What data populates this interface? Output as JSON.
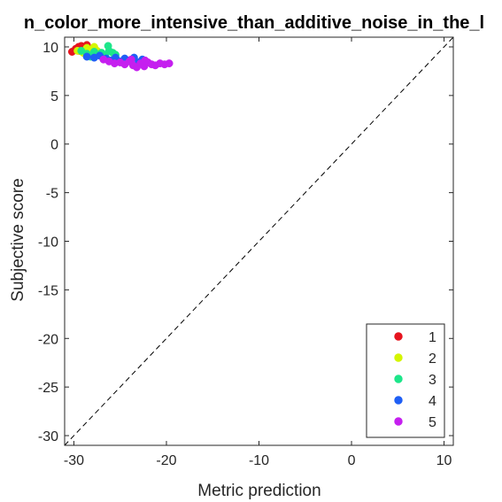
{
  "chart_data": {
    "type": "scatter",
    "title": "n_color_more_intensive_than_additive_noise_in_the_l",
    "xlabel": "Metric prediction",
    "ylabel": "Subjective score",
    "xlim": [
      -31,
      11
    ],
    "ylim": [
      -31,
      11
    ],
    "xticks": [
      -30,
      -20,
      -10,
      0,
      10
    ],
    "yticks": [
      10,
      5,
      0,
      -5,
      -10,
      -15,
      -20,
      -25,
      -30
    ],
    "reference_line": "y = x (dashed)",
    "legend_position": "bottom-right",
    "grid": false,
    "series": [
      {
        "name": "1",
        "color": "#e6141e",
        "points": [
          [
            -30.2,
            9.5
          ],
          [
            -29.8,
            9.8
          ],
          [
            -29.5,
            10.0
          ],
          [
            -29.2,
            10.1
          ],
          [
            -29.0,
            9.7
          ],
          [
            -28.8,
            9.9
          ],
          [
            -28.6,
            10.2
          ],
          [
            -29.4,
            9.6
          ]
        ]
      },
      {
        "name": "2",
        "color": "#d4f500",
        "points": [
          [
            -29.6,
            9.6
          ],
          [
            -29.0,
            9.4
          ],
          [
            -28.6,
            9.9
          ],
          [
            -28.3,
            9.3
          ],
          [
            -28.0,
            9.8
          ],
          [
            -27.8,
            10.0
          ],
          [
            -27.5,
            9.6
          ],
          [
            -27.2,
            9.4
          ]
        ]
      },
      {
        "name": "3",
        "color": "#1de68a",
        "points": [
          [
            -29.2,
            9.6
          ],
          [
            -28.6,
            9.3
          ],
          [
            -28.2,
            9.0
          ],
          [
            -27.8,
            9.5
          ],
          [
            -27.4,
            9.2
          ],
          [
            -27.0,
            9.4
          ],
          [
            -26.6,
            9.1
          ],
          [
            -26.2,
            9.6
          ],
          [
            -25.8,
            9.4
          ],
          [
            -25.5,
            9.2
          ],
          [
            -26.3,
            10.1
          ]
        ]
      },
      {
        "name": "4",
        "color": "#1f5ff5",
        "points": [
          [
            -28.6,
            9.0
          ],
          [
            -27.8,
            8.9
          ],
          [
            -27.2,
            9.1
          ],
          [
            -26.5,
            8.8
          ],
          [
            -26.0,
            8.6
          ],
          [
            -25.5,
            8.9
          ],
          [
            -25.0,
            8.5
          ],
          [
            -24.5,
            8.8
          ],
          [
            -24.0,
            8.6
          ],
          [
            -23.5,
            8.9
          ],
          [
            -23.0,
            8.4
          ],
          [
            -22.6,
            8.7
          ]
        ]
      },
      {
        "name": "5",
        "color": "#c51fef",
        "points": [
          [
            -26.8,
            8.7
          ],
          [
            -26.2,
            8.5
          ],
          [
            -25.6,
            8.3
          ],
          [
            -25.0,
            8.4
          ],
          [
            -24.5,
            8.2
          ],
          [
            -24.0,
            8.5
          ],
          [
            -23.6,
            8.1
          ],
          [
            -23.2,
            7.9
          ],
          [
            -22.8,
            8.3
          ],
          [
            -22.4,
            8.0
          ],
          [
            -22.0,
            8.4
          ],
          [
            -21.6,
            8.2
          ],
          [
            -21.2,
            8.1
          ],
          [
            -20.7,
            8.3
          ],
          [
            -20.2,
            8.2
          ],
          [
            -19.7,
            8.3
          ],
          [
            -23.8,
            8.7
          ],
          [
            -22.3,
            8.6
          ]
        ]
      }
    ]
  }
}
